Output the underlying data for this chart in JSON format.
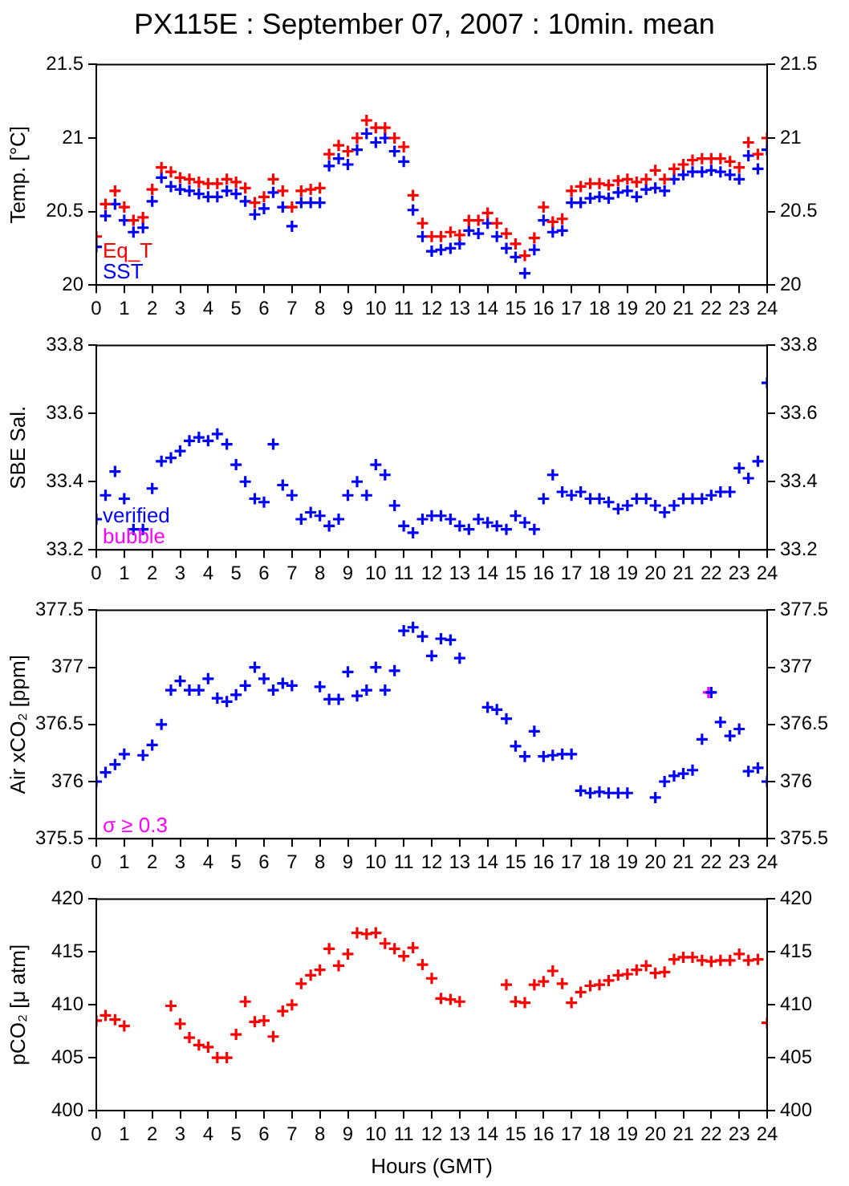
{
  "chart_data": [
    {
      "type": "scatter",
      "title": "PX115E : September 07, 2007 : 10min. mean",
      "ylabel": "Temp. [°C]",
      "marker": "cross",
      "legend": "bottom left",
      "x": [
        0,
        0.33,
        0.67,
        1,
        1.33,
        1.67,
        2,
        2.33,
        2.67,
        3,
        3.33,
        3.67,
        4,
        4.33,
        4.67,
        5,
        5.33,
        5.67,
        6,
        6.33,
        6.67,
        7,
        7.33,
        7.67,
        8,
        8.33,
        8.67,
        9,
        9.33,
        9.67,
        10,
        10.33,
        10.67,
        11,
        11.33,
        11.67,
        12,
        12.33,
        12.67,
        13,
        13.33,
        13.67,
        14,
        14.33,
        14.67,
        15,
        15.33,
        15.67,
        16,
        16.33,
        16.67,
        17,
        17.33,
        17.67,
        18,
        18.33,
        18.67,
        19,
        19.33,
        19.67,
        20,
        20.33,
        20.67,
        21,
        21.33,
        21.67,
        22,
        22.33,
        22.67,
        23,
        23.33,
        23.67,
        24
      ],
      "series": [
        {
          "name": "Eq_T",
          "color": "#ff0000",
          "values": [
            20.33,
            20.55,
            20.64,
            20.53,
            20.44,
            20.46,
            20.65,
            20.8,
            20.77,
            20.73,
            20.72,
            20.7,
            20.69,
            20.69,
            20.72,
            20.7,
            20.66,
            20.56,
            20.6,
            20.72,
            20.64,
            20.53,
            20.64,
            20.65,
            20.66,
            20.89,
            20.95,
            20.91,
            21.0,
            21.12,
            21.07,
            21.07,
            21.0,
            20.94,
            20.61,
            20.42,
            20.33,
            20.33,
            20.36,
            20.34,
            20.44,
            20.44,
            20.49,
            20.42,
            20.35,
            20.28,
            20.2,
            20.32,
            20.53,
            20.43,
            20.45,
            20.64,
            20.67,
            20.69,
            20.69,
            20.68,
            20.71,
            20.72,
            20.7,
            20.72,
            20.78,
            20.72,
            20.79,
            20.82,
            20.85,
            20.86,
            20.86,
            20.86,
            20.84,
            20.8,
            20.97,
            20.89,
            21.0
          ]
        },
        {
          "name": "SST",
          "color": "#0000ff",
          "values": [
            20.26,
            20.47,
            20.55,
            20.44,
            20.36,
            20.39,
            20.57,
            20.73,
            20.67,
            20.65,
            20.64,
            20.62,
            20.6,
            20.6,
            20.64,
            20.62,
            20.57,
            20.48,
            20.52,
            20.63,
            20.53,
            20.4,
            20.56,
            20.56,
            20.56,
            20.81,
            20.86,
            20.82,
            20.92,
            21.03,
            20.97,
            21.0,
            20.91,
            20.84,
            20.51,
            20.33,
            20.23,
            20.24,
            20.25,
            20.28,
            20.37,
            20.35,
            20.42,
            20.33,
            20.25,
            20.19,
            20.08,
            20.24,
            20.44,
            20.36,
            20.37,
            20.56,
            20.56,
            20.59,
            20.6,
            20.59,
            20.63,
            20.64,
            20.6,
            20.65,
            20.66,
            20.64,
            20.72,
            20.75,
            20.77,
            20.77,
            20.78,
            20.77,
            20.75,
            20.72,
            20.88,
            20.79,
            20.92
          ]
        }
      ],
      "xlim": [
        0,
        24
      ],
      "xticks": [
        0,
        1,
        2,
        3,
        4,
        5,
        6,
        7,
        8,
        9,
        10,
        11,
        12,
        13,
        14,
        15,
        16,
        17,
        18,
        19,
        20,
        21,
        22,
        23,
        24
      ],
      "ylim": [
        20,
        21.5
      ],
      "yticks": [
        20,
        20.5,
        21,
        21.5
      ],
      "y2lim": [
        20,
        21.5
      ],
      "y2ticks": [
        20,
        20.5,
        21,
        21.5
      ]
    },
    {
      "type": "scatter",
      "ylabel": "SBE Sal.",
      "marker": "cross",
      "legend": "bottom left",
      "x": [
        0,
        0.33,
        0.67,
        1,
        1.33,
        1.67,
        2,
        2.33,
        2.67,
        3,
        3.33,
        3.67,
        4,
        4.33,
        4.67,
        5,
        5.33,
        5.67,
        6,
        6.33,
        6.67,
        7,
        7.33,
        7.67,
        8,
        8.33,
        8.67,
        9,
        9.33,
        9.67,
        10,
        10.33,
        10.67,
        11,
        11.33,
        11.67,
        12,
        12.33,
        12.67,
        13,
        13.33,
        13.67,
        14,
        14.33,
        14.67,
        15,
        15.33,
        15.67,
        16,
        16.33,
        16.67,
        17,
        17.33,
        17.67,
        18,
        18.33,
        18.67,
        19,
        19.33,
        19.67,
        20,
        20.33,
        20.67,
        21,
        21.33,
        21.67,
        22,
        22.33,
        22.67,
        23,
        23.33,
        23.67,
        24
      ],
      "series": [
        {
          "name": "verified",
          "color": "#0000ff",
          "values": [
            33.29,
            33.36,
            33.43,
            33.35,
            33.26,
            33.26,
            33.38,
            33.46,
            33.47,
            33.49,
            33.52,
            33.53,
            33.52,
            33.54,
            33.51,
            33.45,
            33.4,
            33.35,
            33.34,
            33.51,
            33.39,
            33.36,
            33.29,
            33.31,
            33.3,
            33.27,
            33.29,
            33.36,
            33.4,
            33.36,
            33.45,
            33.42,
            33.33,
            33.27,
            33.25,
            33.29,
            33.3,
            33.3,
            33.29,
            33.27,
            33.26,
            33.29,
            33.28,
            33.27,
            33.26,
            33.3,
            33.28,
            33.26,
            33.35,
            33.42,
            33.37,
            33.36,
            33.37,
            33.35,
            33.35,
            33.34,
            33.32,
            33.33,
            33.35,
            33.35,
            33.33,
            33.31,
            33.33,
            33.35,
            33.35,
            33.35,
            33.36,
            33.37,
            33.37,
            33.44,
            33.41,
            33.46,
            33.69
          ]
        },
        {
          "name": "bubble",
          "color": "#ff00ff",
          "values": [
            null,
            null,
            null,
            null,
            null,
            null,
            null,
            null,
            null,
            null,
            null,
            null,
            null,
            null,
            null,
            null,
            null,
            null,
            null,
            null,
            null,
            null,
            null,
            null,
            null,
            null,
            null,
            null,
            null,
            null,
            null,
            null,
            null,
            null,
            null,
            null,
            null,
            null,
            null,
            null,
            null,
            null,
            null,
            null,
            null,
            null,
            null,
            null,
            null,
            null,
            null,
            null,
            null,
            null,
            null,
            null,
            null,
            null,
            null,
            null,
            null,
            null,
            null,
            null,
            null,
            null,
            null,
            null,
            null,
            null,
            null,
            null,
            null
          ]
        }
      ],
      "xlim": [
        0,
        24
      ],
      "xticks": [
        0,
        1,
        2,
        3,
        4,
        5,
        6,
        7,
        8,
        9,
        10,
        11,
        12,
        13,
        14,
        15,
        16,
        17,
        18,
        19,
        20,
        21,
        22,
        23,
        24
      ],
      "ylim": [
        33.2,
        33.8
      ],
      "yticks": [
        33.2,
        33.4,
        33.6,
        33.8
      ],
      "y2lim": [
        33.2,
        33.8
      ],
      "y2ticks": [
        33.2,
        33.4,
        33.6,
        33.8
      ]
    },
    {
      "type": "scatter",
      "ylabel": "Air xCO₂ [ppm]",
      "marker": "cross",
      "legend": "bottom left",
      "x": [
        0,
        0.33,
        0.67,
        1,
        1.33,
        1.67,
        2,
        2.33,
        2.67,
        3,
        3.33,
        3.67,
        4,
        4.33,
        4.67,
        5,
        5.33,
        5.67,
        6,
        6.33,
        6.67,
        7,
        7.33,
        7.67,
        8,
        8.33,
        8.67,
        9,
        9.33,
        9.67,
        10,
        10.33,
        10.67,
        11,
        11.33,
        11.67,
        12,
        12.33,
        12.67,
        13,
        13.33,
        13.67,
        14,
        14.33,
        14.67,
        15,
        15.33,
        15.67,
        16,
        16.33,
        16.67,
        17,
        17.33,
        17.67,
        18,
        18.33,
        18.67,
        19,
        19.33,
        19.67,
        20,
        20.33,
        20.67,
        21,
        21.33,
        21.67,
        22,
        22.33,
        22.67,
        23,
        23.33,
        23.67,
        24
      ],
      "series": [
        {
          "color": "#0000ff",
          "values": [
            376.0,
            376.08,
            376.15,
            376.24,
            null,
            376.23,
            376.32,
            376.5,
            376.8,
            376.88,
            376.8,
            376.8,
            376.9,
            376.73,
            376.7,
            376.76,
            376.84,
            377.0,
            376.9,
            376.8,
            376.86,
            376.84,
            null,
            null,
            376.83,
            376.72,
            376.72,
            376.96,
            376.75,
            376.8,
            377.0,
            376.8,
            376.97,
            377.32,
            377.35,
            377.27,
            377.1,
            377.25,
            377.24,
            377.08,
            null,
            null,
            376.65,
            376.63,
            376.55,
            376.31,
            376.22,
            376.44,
            376.22,
            376.23,
            376.24,
            376.24,
            375.92,
            375.9,
            375.91,
            375.9,
            375.9,
            375.9,
            null,
            null,
            375.86,
            376.0,
            376.05,
            376.07,
            376.1,
            376.37,
            376.78,
            376.52,
            376.4,
            376.46,
            376.09,
            376.12,
            376.0
          ]
        },
        {
          "name": "σ ≥ 0.3",
          "color": "#ff00ff",
          "x": [
            21.9
          ],
          "values": [
            376.78
          ]
        }
      ],
      "xlim": [
        0,
        24
      ],
      "xticks": [
        0,
        1,
        2,
        3,
        4,
        5,
        6,
        7,
        8,
        9,
        10,
        11,
        12,
        13,
        14,
        15,
        16,
        17,
        18,
        19,
        20,
        21,
        22,
        23,
        24
      ],
      "ylim": [
        375.5,
        377.5
      ],
      "yticks": [
        375.5,
        376,
        376.5,
        377,
        377.5
      ],
      "y2lim": [
        375.5,
        377.5
      ],
      "y2ticks": [
        375.5,
        376,
        376.5,
        377,
        377.5
      ]
    },
    {
      "type": "scatter",
      "ylabel": "pCO₂ [μ atm]",
      "xlabel": "Hours (GMT)",
      "marker": "cross",
      "x": [
        0,
        0.33,
        0.67,
        1,
        1.33,
        1.67,
        2,
        2.33,
        2.67,
        3,
        3.33,
        3.67,
        4,
        4.33,
        4.67,
        5,
        5.33,
        5.67,
        6,
        6.33,
        6.67,
        7,
        7.33,
        7.67,
        8,
        8.33,
        8.67,
        9,
        9.33,
        9.67,
        10,
        10.33,
        10.67,
        11,
        11.33,
        11.67,
        12,
        12.33,
        12.67,
        13,
        13.33,
        13.67,
        14,
        14.33,
        14.67,
        15,
        15.33,
        15.67,
        16,
        16.33,
        16.67,
        17,
        17.33,
        17.67,
        18,
        18.33,
        18.67,
        19,
        19.33,
        19.67,
        20,
        20.33,
        20.67,
        21,
        21.33,
        21.67,
        22,
        22.33,
        22.67,
        23,
        23.33,
        23.67,
        24
      ],
      "series": [
        {
          "color": "#ff0000",
          "values": [
            408.5,
            409.0,
            408.6,
            408.0,
            null,
            null,
            null,
            null,
            409.9,
            408.2,
            406.9,
            406.2,
            406.0,
            405.0,
            405.0,
            407.2,
            410.3,
            408.4,
            408.5,
            407.0,
            409.4,
            410.0,
            412.0,
            412.8,
            413.3,
            415.3,
            413.7,
            414.8,
            416.8,
            416.7,
            416.8,
            415.8,
            415.3,
            414.6,
            415.4,
            413.8,
            412.5,
            410.6,
            410.5,
            410.3,
            null,
            null,
            null,
            null,
            411.9,
            410.3,
            410.2,
            411.9,
            412.2,
            413.2,
            412.0,
            410.2,
            411.2,
            411.8,
            411.9,
            412.3,
            412.8,
            412.9,
            413.3,
            413.7,
            413.0,
            413.1,
            414.3,
            414.5,
            414.5,
            414.2,
            414.1,
            414.2,
            414.2,
            414.8,
            414.2,
            414.3,
            408.3
          ]
        }
      ],
      "xlim": [
        0,
        24
      ],
      "xticks": [
        0,
        1,
        2,
        3,
        4,
        5,
        6,
        7,
        8,
        9,
        10,
        11,
        12,
        13,
        14,
        15,
        16,
        17,
        18,
        19,
        20,
        21,
        22,
        23,
        24
      ],
      "ylim": [
        400,
        420
      ],
      "yticks": [
        400,
        405,
        410,
        415,
        420
      ],
      "y2lim": [
        400,
        420
      ],
      "y2ticks": [
        400,
        405,
        410,
        415,
        420
      ]
    }
  ]
}
